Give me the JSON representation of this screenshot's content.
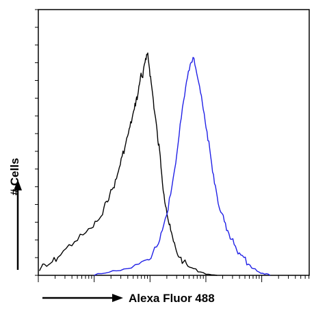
{
  "chart_data": {
    "type": "line",
    "title": "",
    "xlabel": "Alexa Fluor 488",
    "ylabel": "# Cells",
    "x_scale": "log",
    "xlim": [
      0,
      4.85
    ],
    "ylim": [
      0,
      1
    ],
    "series": [
      {
        "color": "#000000",
        "x": [
          0.02,
          0.08,
          0.15,
          0.25,
          0.35,
          0.5,
          0.65,
          0.8,
          0.95,
          1.05,
          1.15,
          1.22,
          1.28,
          1.34,
          1.4,
          1.45,
          1.5,
          1.55,
          1.6,
          1.64,
          1.68,
          1.72,
          1.75,
          1.78,
          1.81,
          1.84,
          1.87,
          1.9,
          1.93,
          1.96,
          1.99,
          2.02,
          2.05,
          2.08,
          2.11,
          2.14,
          2.17,
          2.21,
          2.25,
          2.29,
          2.33,
          2.37,
          2.42,
          2.47,
          2.53,
          2.6,
          2.68,
          2.78,
          2.9,
          3.05,
          3.2
        ],
        "y": [
          0.02,
          0.05,
          0.04,
          0.06,
          0.08,
          0.12,
          0.15,
          0.18,
          0.21,
          0.24,
          0.27,
          0.33,
          0.36,
          0.39,
          0.43,
          0.48,
          0.53,
          0.57,
          0.62,
          0.66,
          0.7,
          0.74,
          0.78,
          0.8,
          0.85,
          0.9,
          0.88,
          0.94,
          0.96,
          0.99,
          0.92,
          0.86,
          0.8,
          0.73,
          0.68,
          0.6,
          0.56,
          0.45,
          0.36,
          0.3,
          0.24,
          0.2,
          0.15,
          0.11,
          0.08,
          0.06,
          0.04,
          0.03,
          0.015,
          0.005,
          0.0
        ]
      },
      {
        "color": "#1f1fe6",
        "x": [
          1.0,
          1.2,
          1.4,
          1.6,
          1.8,
          1.95,
          2.05,
          2.15,
          2.22,
          2.3,
          2.37,
          2.44,
          2.5,
          2.56,
          2.62,
          2.67,
          2.72,
          2.77,
          2.82,
          2.87,
          2.92,
          2.97,
          3.02,
          3.07,
          3.12,
          3.17,
          3.22,
          3.27,
          3.33,
          3.39,
          3.46,
          3.53,
          3.6,
          3.68,
          3.76,
          3.85,
          3.95,
          4.05,
          4.15
        ],
        "y": [
          0.0,
          0.01,
          0.02,
          0.03,
          0.05,
          0.07,
          0.1,
          0.14,
          0.2,
          0.27,
          0.36,
          0.47,
          0.58,
          0.7,
          0.8,
          0.88,
          0.94,
          0.97,
          0.92,
          0.86,
          0.8,
          0.72,
          0.64,
          0.56,
          0.46,
          0.4,
          0.32,
          0.28,
          0.24,
          0.2,
          0.16,
          0.13,
          0.1,
          0.08,
          0.05,
          0.03,
          0.015,
          0.005,
          0.0
        ]
      }
    ],
    "grid": false,
    "legend": "none"
  }
}
